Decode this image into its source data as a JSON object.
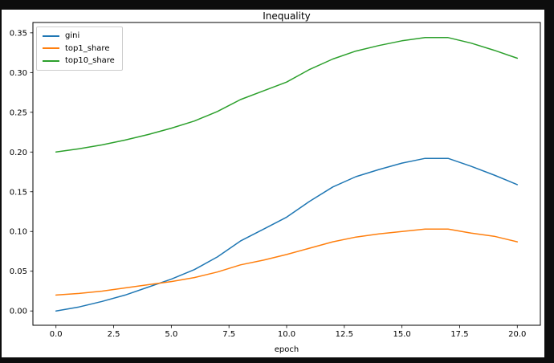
{
  "window": {
    "background_color": "#0d0d0d",
    "figure_color": "#ffffff"
  },
  "chart_data": {
    "type": "line",
    "title": "Inequality",
    "xlabel": "epoch",
    "ylabel": "",
    "xlim": [
      -1,
      21
    ],
    "ylim": [
      -0.018,
      0.363
    ],
    "grid": false,
    "axis_color": "#000000",
    "tick_label_color": "#000000",
    "line_width": 1.5,
    "legend_position": "upper-left",
    "x_ticks": {
      "values": [
        0,
        2.5,
        5,
        7.5,
        10,
        12.5,
        15,
        17.5,
        20
      ],
      "labels": [
        "0.0",
        "2.5",
        "5.0",
        "7.5",
        "10.0",
        "12.5",
        "15.0",
        "17.5",
        "20.0"
      ]
    },
    "y_ticks": {
      "values": [
        0,
        0.05,
        0.1,
        0.15,
        0.2,
        0.25,
        0.3,
        0.35
      ],
      "labels": [
        "0.00",
        "0.05",
        "0.10",
        "0.15",
        "0.20",
        "0.25",
        "0.30",
        "0.35"
      ]
    },
    "x": [
      0,
      1,
      2,
      3,
      4,
      5,
      6,
      7,
      8,
      9,
      10,
      11,
      12,
      13,
      14,
      15,
      16,
      17,
      18,
      19,
      20
    ],
    "series": [
      {
        "name": "gini",
        "color": "#1f77b4",
        "values": [
          0.0,
          0.005,
          0.012,
          0.02,
          0.03,
          0.04,
          0.052,
          0.068,
          0.088,
          0.103,
          0.118,
          0.138,
          0.156,
          0.169,
          0.178,
          0.186,
          0.192,
          0.192,
          0.182,
          0.171,
          0.159
        ]
      },
      {
        "name": "top1_share",
        "color": "#ff7f0e",
        "values": [
          0.02,
          0.022,
          0.025,
          0.029,
          0.033,
          0.037,
          0.042,
          0.049,
          0.058,
          0.064,
          0.071,
          0.079,
          0.087,
          0.093,
          0.097,
          0.1,
          0.103,
          0.103,
          0.098,
          0.094,
          0.087
        ]
      },
      {
        "name": "top10_share",
        "color": "#2ca02c",
        "values": [
          0.2,
          0.204,
          0.209,
          0.215,
          0.222,
          0.23,
          0.239,
          0.251,
          0.266,
          0.277,
          0.288,
          0.304,
          0.317,
          0.327,
          0.334,
          0.34,
          0.344,
          0.344,
          0.337,
          0.328,
          0.318
        ]
      }
    ]
  }
}
